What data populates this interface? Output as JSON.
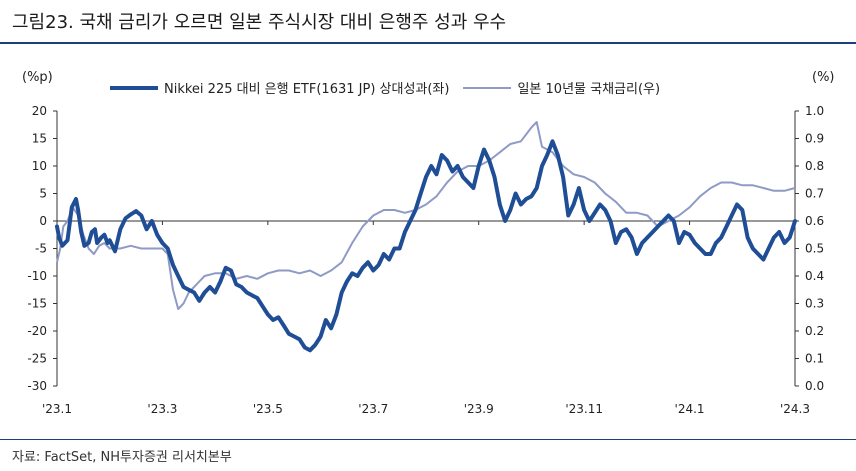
{
  "title": "그림23. 국채 금리가 오르면 일본 주식시장 대비 은행주 성과 우수",
  "source": "자료: FactSet, NH투자증권 리서치본부",
  "colors": {
    "primary": "#1f4e96",
    "secondary": "#8f9ac6",
    "rule": "#1f3f7a"
  },
  "chart_data": {
    "type": "line",
    "left_unit": "(%p)",
    "right_unit": "(%)",
    "x_ticks": [
      "'23.1",
      "'23.3",
      "'23.5",
      "'23.7",
      "'23.9",
      "'23.11",
      "'24.1",
      "'24.3"
    ],
    "y_left": {
      "min": -30,
      "max": 20,
      "ticks": [
        "20",
        "15",
        "10",
        "5",
        "0",
        "-5",
        "-10",
        "-15",
        "-20",
        "-25",
        "-30"
      ]
    },
    "y_right": {
      "min": 0.0,
      "max": 1.0,
      "ticks": [
        "1.0",
        "0.9",
        "0.8",
        "0.7",
        "0.6",
        "0.5",
        "0.4",
        "0.3",
        "0.2",
        "0.1",
        "0.0"
      ]
    },
    "series": [
      {
        "name": "Nikkei 225 대비 은행 ETF(1631 JP) 상대성과(좌)",
        "axis": "left",
        "x": [
          0,
          0.02,
          0.05,
          0.1,
          0.14,
          0.18,
          0.2,
          0.23,
          0.26,
          0.3,
          0.33,
          0.36,
          0.38,
          0.42,
          0.45,
          0.48,
          0.5,
          0.55,
          0.6,
          0.65,
          0.7,
          0.75,
          0.8,
          0.85,
          0.9,
          0.95,
          1.0,
          1.05,
          1.1,
          1.15,
          1.2,
          1.25,
          1.3,
          1.35,
          1.4,
          1.45,
          1.5,
          1.55,
          1.6,
          1.65,
          1.7,
          1.75,
          1.8,
          1.85,
          1.9,
          1.95,
          2.0,
          2.05,
          2.1,
          2.15,
          2.2,
          2.25,
          2.3,
          2.35,
          2.4,
          2.45,
          2.5,
          2.55,
          2.6,
          2.65,
          2.7,
          2.75,
          2.8,
          2.85,
          2.9,
          2.95,
          3.0,
          3.05,
          3.1,
          3.15,
          3.2,
          3.25,
          3.3,
          3.35,
          3.4,
          3.45,
          3.5,
          3.55,
          3.6,
          3.65,
          3.7,
          3.75,
          3.8,
          3.85,
          3.9,
          3.95,
          4.0,
          4.05,
          4.1,
          4.15,
          4.2,
          4.25,
          4.3,
          4.35,
          4.4,
          4.45,
          4.5,
          4.55,
          4.6,
          4.65,
          4.7,
          4.75,
          4.8,
          4.85,
          4.9,
          4.95,
          5.0,
          5.05,
          5.1,
          5.15,
          5.2,
          5.25,
          5.3,
          5.35,
          5.4,
          5.45,
          5.5,
          5.55,
          5.6,
          5.65,
          5.7,
          5.75,
          5.8,
          5.85,
          5.9,
          5.95,
          6.0,
          6.05,
          6.1,
          6.15,
          6.2,
          6.25,
          6.3,
          6.35,
          6.4,
          6.45,
          6.5,
          6.55,
          6.6,
          6.65,
          6.7,
          6.75,
          6.8,
          6.85,
          6.9,
          6.95,
          7.0
        ],
        "values": [
          -1,
          -3,
          -4.5,
          -3.5,
          2.5,
          4,
          2,
          -2,
          -4.5,
          -4,
          -2,
          -1.5,
          -4,
          -3,
          -2.5,
          -4,
          -3.5,
          -5.5,
          -1.5,
          0.5,
          1.2,
          1.8,
          1.0,
          -1.5,
          0,
          -2.5,
          -4,
          -5,
          -8,
          -10,
          -12,
          -12.5,
          -13,
          -14.5,
          -13,
          -12,
          -13,
          -11,
          -8.5,
          -9,
          -11.5,
          -12,
          -13,
          -13.5,
          -14,
          -15.5,
          -17,
          -18,
          -17.5,
          -19,
          -20.5,
          -21,
          -21.5,
          -23,
          -23.5,
          -22.5,
          -21,
          -18,
          -19.5,
          -17,
          -13,
          -11,
          -9.5,
          -10,
          -8.5,
          -7.5,
          -9,
          -8,
          -6,
          -7,
          -5,
          -5,
          -2,
          0,
          2,
          5,
          8,
          10,
          8.5,
          12,
          11,
          9,
          10,
          8,
          7,
          6,
          10,
          13,
          11,
          8,
          3,
          0,
          2,
          5,
          3,
          4,
          4.5,
          6,
          10,
          12,
          14.5,
          12,
          8,
          1,
          3,
          6,
          2,
          0,
          1.5,
          3,
          2,
          0,
          -4,
          -2,
          -1.5,
          -3,
          -6,
          -4,
          -3,
          -2,
          -1,
          0,
          1,
          0,
          -4,
          -2,
          -2.5,
          -4,
          -5,
          -6,
          -6,
          -4,
          -3,
          -1,
          1,
          3,
          2,
          -3,
          -5,
          -6,
          -7,
          -5,
          -3,
          -2,
          -4,
          -3,
          0
        ]
      },
      {
        "name": "일본 10년물 국채금리(우)",
        "axis": "right",
        "x": [
          0,
          0.03,
          0.06,
          0.1,
          0.15,
          0.2,
          0.25,
          0.3,
          0.35,
          0.4,
          0.45,
          0.5,
          0.6,
          0.7,
          0.8,
          0.9,
          1.0,
          1.05,
          1.1,
          1.15,
          1.2,
          1.25,
          1.3,
          1.35,
          1.4,
          1.5,
          1.6,
          1.7,
          1.8,
          1.9,
          2.0,
          2.1,
          2.2,
          2.3,
          2.4,
          2.5,
          2.6,
          2.7,
          2.8,
          2.9,
          3.0,
          3.1,
          3.2,
          3.3,
          3.4,
          3.5,
          3.6,
          3.7,
          3.8,
          3.9,
          4.0,
          4.1,
          4.2,
          4.3,
          4.4,
          4.5,
          4.55,
          4.6,
          4.7,
          4.8,
          4.9,
          5.0,
          5.1,
          5.2,
          5.3,
          5.4,
          5.5,
          5.6,
          5.7,
          5.8,
          5.9,
          6.0,
          6.1,
          6.2,
          6.3,
          6.4,
          6.5,
          6.6,
          6.7,
          6.8,
          6.9,
          7.0
        ],
        "values": [
          0.45,
          0.5,
          0.58,
          0.6,
          0.65,
          0.62,
          0.55,
          0.5,
          0.48,
          0.51,
          0.52,
          0.5,
          0.5,
          0.51,
          0.5,
          0.5,
          0.5,
          0.48,
          0.35,
          0.28,
          0.3,
          0.34,
          0.36,
          0.38,
          0.4,
          0.41,
          0.41,
          0.39,
          0.4,
          0.39,
          0.41,
          0.42,
          0.42,
          0.41,
          0.42,
          0.4,
          0.42,
          0.45,
          0.52,
          0.58,
          0.62,
          0.64,
          0.64,
          0.63,
          0.64,
          0.66,
          0.69,
          0.74,
          0.78,
          0.8,
          0.8,
          0.82,
          0.85,
          0.88,
          0.89,
          0.94,
          0.96,
          0.87,
          0.85,
          0.8,
          0.77,
          0.76,
          0.74,
          0.7,
          0.67,
          0.63,
          0.63,
          0.62,
          0.58,
          0.6,
          0.62,
          0.65,
          0.69,
          0.72,
          0.74,
          0.74,
          0.73,
          0.73,
          0.72,
          0.71,
          0.71,
          0.72
        ]
      }
    ],
    "legend_position": "top-center",
    "grid": false
  }
}
